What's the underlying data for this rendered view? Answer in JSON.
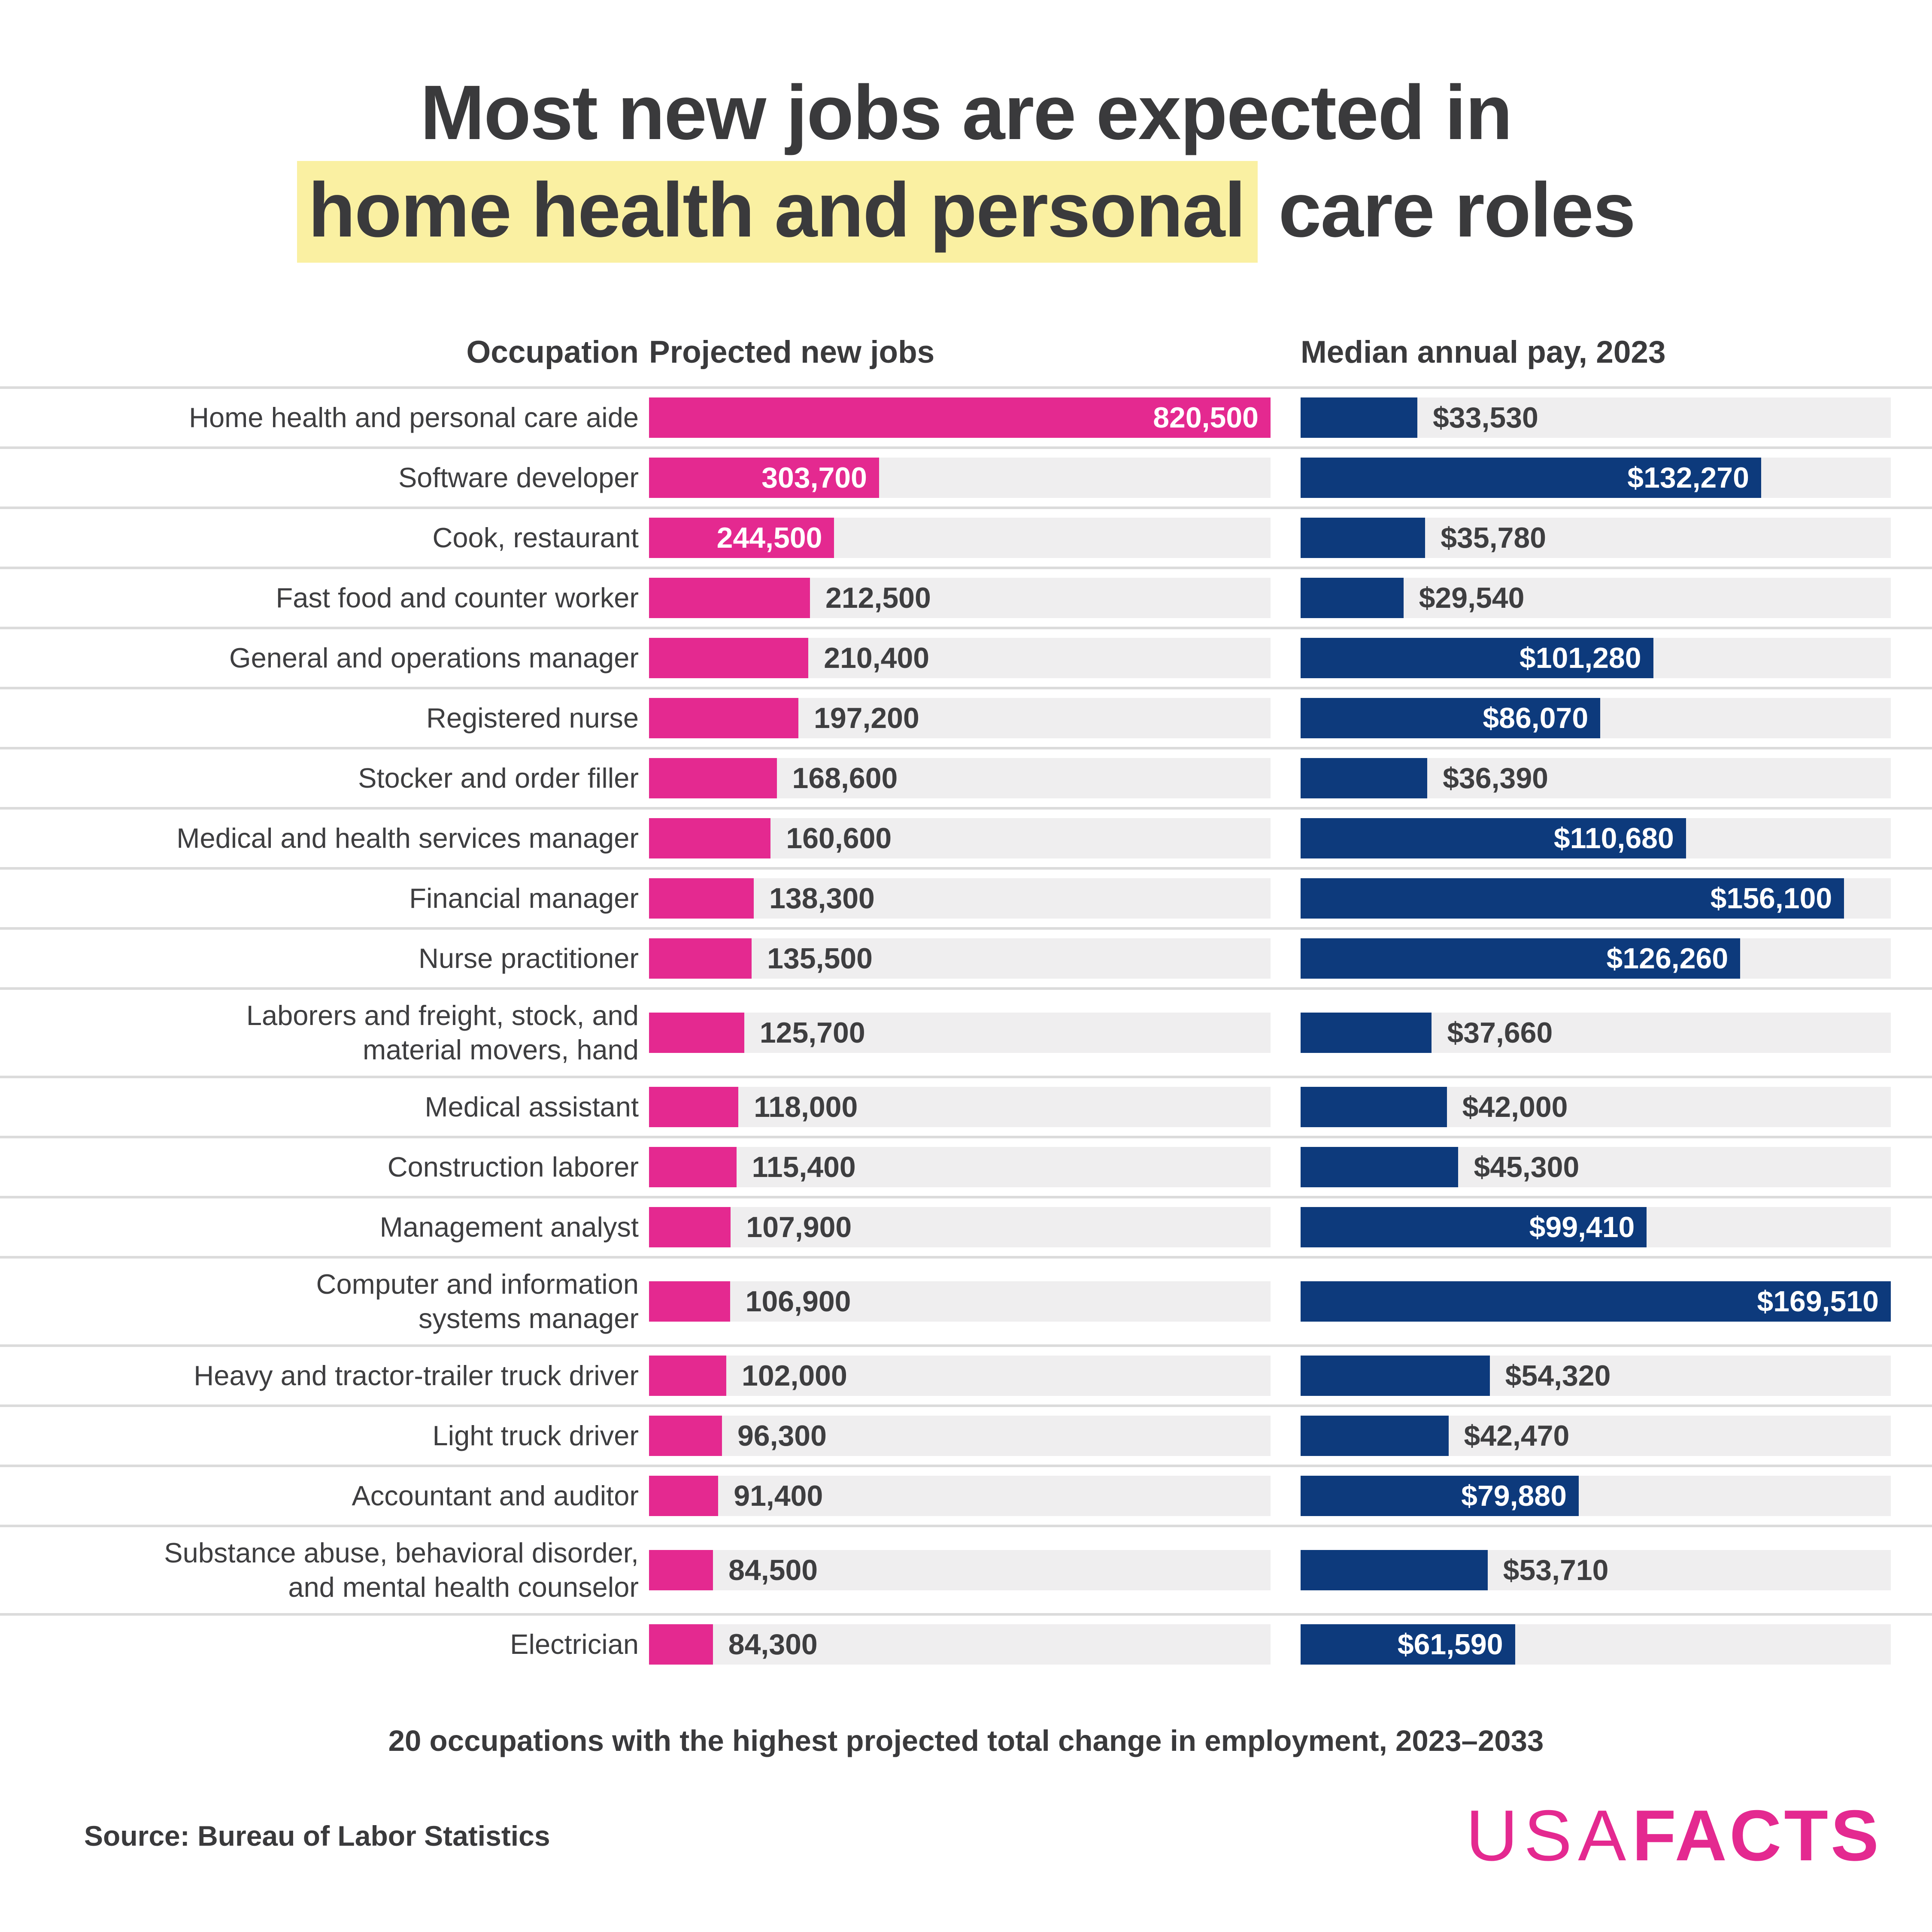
{
  "page": {
    "title_line1": "Most new jobs are expected in",
    "title_highlight": "home health and personal",
    "title_rest": " care roles",
    "caption": "20 occupations with the highest projected total change in employment, 2023–2033",
    "source": "Source: Bureau of Labor Statistics",
    "logo_part1": "USA",
    "logo_part2": "FACTS"
  },
  "table_headers": {
    "occupation": "Occupation",
    "jobs": "Projected new jobs",
    "pay": "Median annual pay, 2023"
  },
  "colors": {
    "jobs_bar": "#e42990",
    "pay_bar": "#0d3a7c",
    "bar_track": "#efeeef",
    "row_separator": "#dbdbdb",
    "title_highlight_bg": "#faf0a2",
    "text": "#3a3a3c",
    "logo_pink": "#e42990"
  },
  "chart_data": {
    "type": "bar",
    "orientation": "horizontal",
    "title": "Most new jobs are expected in home health and personal care roles",
    "highlighted_phrase": "home health and personal",
    "caption": "20 occupations with the highest projected total change in employment, 2023–2033",
    "source": "Source: Bureau of Labor Statistics",
    "grid": false,
    "legend_position": "column-headers",
    "series": [
      {
        "name": "Projected new jobs",
        "color": "#e42990",
        "xlim": [
          0,
          820500
        ]
      },
      {
        "name": "Median annual pay, 2023",
        "color": "#0d3a7c",
        "xlim": [
          0,
          169510
        ]
      }
    ],
    "inside_label_threshold": {
      "jobs": 0.28,
      "pay": 0.34
    },
    "rows": [
      {
        "occupation": "Home health and personal care aide",
        "jobs": 820500,
        "jobs_label": "820,500",
        "pay": 33530,
        "pay_label": "$33,530"
      },
      {
        "occupation": "Software developer",
        "jobs": 303700,
        "jobs_label": "303,700",
        "pay": 132270,
        "pay_label": "$132,270"
      },
      {
        "occupation": "Cook, restaurant",
        "jobs": 244500,
        "jobs_label": "244,500",
        "pay": 35780,
        "pay_label": "$35,780"
      },
      {
        "occupation": "Fast food and counter worker",
        "jobs": 212500,
        "jobs_label": "212,500",
        "pay": 29540,
        "pay_label": "$29,540"
      },
      {
        "occupation": "General and operations manager",
        "jobs": 210400,
        "jobs_label": "210,400",
        "pay": 101280,
        "pay_label": "$101,280"
      },
      {
        "occupation": "Registered nurse",
        "jobs": 197200,
        "jobs_label": "197,200",
        "pay": 86070,
        "pay_label": "$86,070"
      },
      {
        "occupation": "Stocker and order filler",
        "jobs": 168600,
        "jobs_label": "168,600",
        "pay": 36390,
        "pay_label": "$36,390"
      },
      {
        "occupation": "Medical and health services manager",
        "jobs": 160600,
        "jobs_label": "160,600",
        "pay": 110680,
        "pay_label": "$110,680"
      },
      {
        "occupation": "Financial manager",
        "jobs": 138300,
        "jobs_label": "138,300",
        "pay": 156100,
        "pay_label": "$156,100"
      },
      {
        "occupation": "Nurse practitioner",
        "jobs": 135500,
        "jobs_label": "135,500",
        "pay": 126260,
        "pay_label": "$126,260"
      },
      {
        "occupation": "Laborers and freight, stock, and\nmaterial movers, hand",
        "jobs": 125700,
        "jobs_label": "125,700",
        "pay": 37660,
        "pay_label": "$37,660"
      },
      {
        "occupation": "Medical assistant",
        "jobs": 118000,
        "jobs_label": "118,000",
        "pay": 42000,
        "pay_label": "$42,000"
      },
      {
        "occupation": "Construction laborer",
        "jobs": 115400,
        "jobs_label": "115,400",
        "pay": 45300,
        "pay_label": "$45,300"
      },
      {
        "occupation": "Management analyst",
        "jobs": 107900,
        "jobs_label": "107,900",
        "pay": 99410,
        "pay_label": "$99,410"
      },
      {
        "occupation": "Computer and information\nsystems manager",
        "jobs": 106900,
        "jobs_label": "106,900",
        "pay": 169510,
        "pay_label": "$169,510"
      },
      {
        "occupation": "Heavy and tractor-trailer truck driver",
        "jobs": 102000,
        "jobs_label": "102,000",
        "pay": 54320,
        "pay_label": "$54,320"
      },
      {
        "occupation": "Light truck driver",
        "jobs": 96300,
        "jobs_label": "96,300",
        "pay": 42470,
        "pay_label": "$42,470"
      },
      {
        "occupation": "Accountant and auditor",
        "jobs": 91400,
        "jobs_label": "91,400",
        "pay": 79880,
        "pay_label": "$79,880"
      },
      {
        "occupation": "Substance abuse, behavioral disorder,\nand mental health counselor",
        "jobs": 84500,
        "jobs_label": "84,500",
        "pay": 53710,
        "pay_label": "$53,710"
      },
      {
        "occupation": "Electrician",
        "jobs": 84300,
        "jobs_label": "84,300",
        "pay": 61590,
        "pay_label": "$61,590"
      }
    ]
  }
}
